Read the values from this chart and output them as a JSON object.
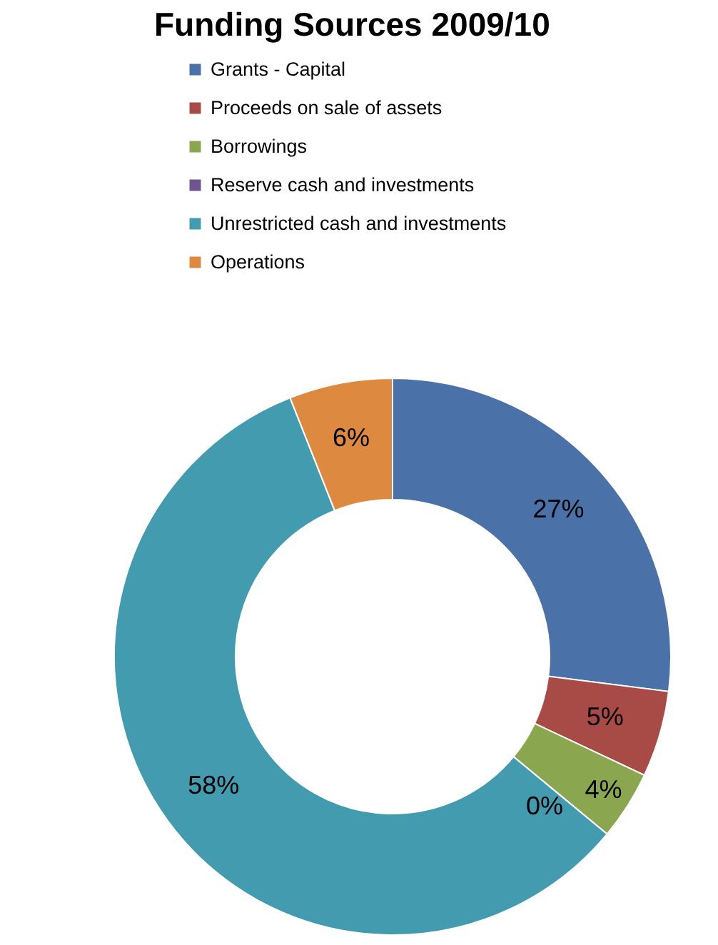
{
  "chart_data": {
    "type": "donut",
    "title": "Funding Sources 2009/10",
    "categories": [
      "Grants - Capital",
      "Proceeds on sale of assets",
      "Borrowings",
      "Reserve cash and investments",
      "Unrestricted cash and investments",
      "Operations"
    ],
    "values": [
      27,
      5,
      4,
      0,
      58,
      6
    ],
    "colors": [
      "#4a72a8",
      "#a84a46",
      "#8aa64e",
      "#6e5590",
      "#439bb0",
      "#dd8a40"
    ],
    "value_labels": [
      "27%",
      "5%",
      "4%",
      "0%",
      "58%",
      "6%"
    ],
    "legend": "top"
  }
}
